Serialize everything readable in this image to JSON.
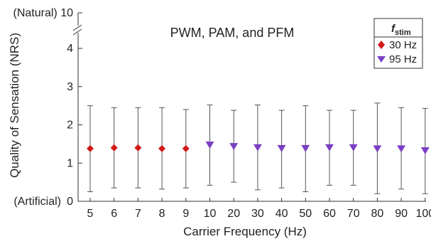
{
  "chart_data": {
    "type": "scatter",
    "title": "PWM, PAM, and PFM",
    "xlabel": "Carrier Frequency (Hz)",
    "ylabel": "Quality of Sensation (NRS)",
    "categories": [
      "5",
      "6",
      "7",
      "8",
      "9",
      "10",
      "20",
      "30",
      "40",
      "50",
      "60",
      "70",
      "80",
      "90",
      "100"
    ],
    "ylim": [
      0,
      4.5
    ],
    "y_ticks": [
      "0",
      "1",
      "2",
      "3",
      "4"
    ],
    "y_break": {
      "label": "10",
      "annotation": "(Natural)"
    },
    "y_zero_annotation": "(Artificial)",
    "grid": false,
    "legend": {
      "title_main": "f",
      "title_sub": "stim",
      "placement": "top-right"
    },
    "series": [
      {
        "name": "30 Hz",
        "marker": "diamond",
        "color": "#d11a1a",
        "categories": [
          "5",
          "6",
          "7",
          "8",
          "9"
        ],
        "values": [
          1.38,
          1.4,
          1.4,
          1.38,
          1.38
        ],
        "error_low": [
          0.25,
          0.35,
          0.35,
          0.32,
          0.35
        ],
        "error_high": [
          2.5,
          2.45,
          2.45,
          2.45,
          2.4
        ]
      },
      {
        "name": "95 Hz",
        "marker": "triangle-down",
        "color": "#7b3fc4",
        "categories": [
          "10",
          "20",
          "30",
          "40",
          "50",
          "60",
          "70",
          "80",
          "90",
          "100"
        ],
        "values": [
          1.47,
          1.43,
          1.4,
          1.38,
          1.38,
          1.4,
          1.4,
          1.37,
          1.37,
          1.32
        ],
        "error_low": [
          0.42,
          0.5,
          0.3,
          0.35,
          0.25,
          0.42,
          0.42,
          0.2,
          0.32,
          0.2
        ],
        "error_high": [
          2.52,
          2.38,
          2.52,
          2.38,
          2.5,
          2.38,
          2.38,
          2.57,
          2.45,
          2.43
        ]
      }
    ]
  }
}
